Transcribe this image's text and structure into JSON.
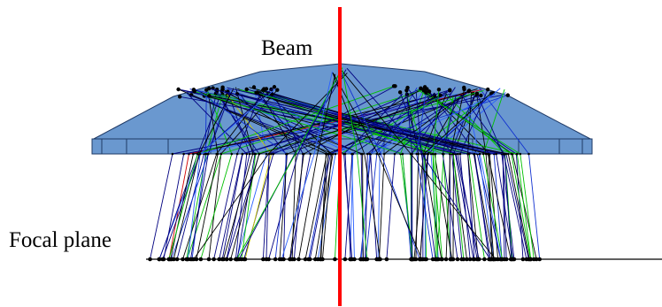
{
  "labels": {
    "beam": "Beam",
    "focal_plane": "Focal plane"
  },
  "colors": {
    "radiator_fill": "#6a98cf",
    "radiator_stroke": "#1f3a66",
    "beam": "#ff0000",
    "ray_palette": [
      "#000080",
      "#000000",
      "#1030d0",
      "#00c000",
      "#000080",
      "#000000",
      "#2a60ff",
      "#000080"
    ],
    "ray_rare": [
      "#d00000",
      "#c8c800"
    ],
    "focal_plane_line": "#000000",
    "hit_dot": "#000000"
  }
}
